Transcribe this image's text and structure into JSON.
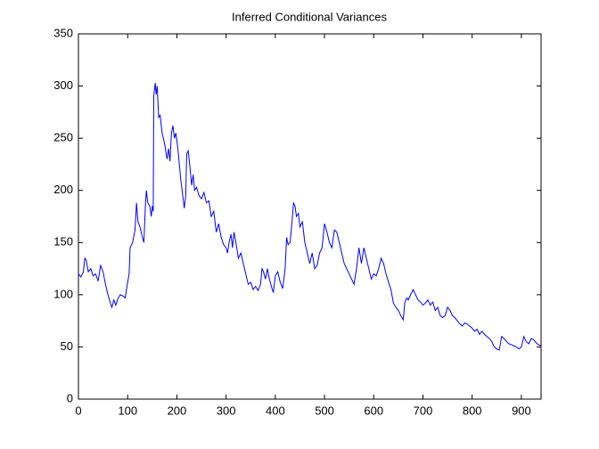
{
  "chart_data": {
    "type": "line",
    "title": "Inferred Conditional Variances",
    "x": [
      0,
      5,
      10,
      13,
      16,
      20,
      25,
      30,
      35,
      40,
      45,
      50,
      55,
      60,
      65,
      68,
      72,
      76,
      80,
      85,
      90,
      95,
      100,
      103,
      105,
      110,
      115,
      118,
      121,
      125,
      130,
      133,
      136,
      138,
      141,
      145,
      148,
      150,
      152,
      153,
      156,
      158,
      160,
      163,
      166,
      170,
      175,
      180,
      183,
      186,
      189,
      192,
      195,
      198,
      202,
      205,
      208,
      212,
      215,
      218,
      220,
      223,
      226,
      230,
      233,
      236,
      240,
      245,
      250,
      255,
      260,
      265,
      270,
      275,
      280,
      285,
      290,
      295,
      300,
      303,
      306,
      310,
      313,
      316,
      320,
      325,
      330,
      335,
      340,
      345,
      350,
      355,
      360,
      365,
      370,
      373,
      376,
      380,
      384,
      388,
      392,
      396,
      400,
      405,
      410,
      415,
      420,
      423,
      426,
      430,
      434,
      437,
      440,
      443,
      447,
      450,
      455,
      460,
      465,
      470,
      475,
      480,
      485,
      490,
      495,
      500,
      505,
      510,
      515,
      520,
      525,
      530,
      535,
      540,
      545,
      550,
      555,
      560,
      565,
      570,
      575,
      580,
      585,
      590,
      595,
      600,
      605,
      610,
      615,
      620,
      625,
      630,
      635,
      640,
      645,
      650,
      655,
      660,
      663,
      667,
      670,
      675,
      680,
      685,
      690,
      695,
      700,
      705,
      710,
      715,
      720,
      725,
      730,
      735,
      740,
      745,
      750,
      755,
      760,
      765,
      770,
      775,
      780,
      785,
      790,
      795,
      800,
      805,
      810,
      815,
      820,
      825,
      830,
      835,
      840,
      845,
      850,
      855,
      860,
      865,
      870,
      875,
      880,
      885,
      890,
      895,
      900,
      905,
      910,
      915,
      920,
      925,
      930,
      935,
      940
    ],
    "series": [
      {
        "color": "#0000ff",
        "values": [
          120,
          117,
          122,
          135,
          133,
          122,
          125,
          118,
          120,
          113,
          128,
          122,
          110,
          100,
          92,
          88,
          95,
          90,
          96,
          100,
          99,
          97,
          112,
          120,
          145,
          150,
          162,
          188,
          170,
          165,
          155,
          150,
          185,
          200,
          188,
          185,
          175,
          185,
          180,
          290,
          303,
          292,
          300,
          270,
          272,
          255,
          245,
          230,
          240,
          228,
          255,
          262,
          250,
          255,
          240,
          225,
          210,
          195,
          183,
          195,
          235,
          238,
          225,
          205,
          215,
          200,
          203,
          195,
          192,
          198,
          188,
          190,
          175,
          180,
          160,
          168,
          155,
          148,
          145,
          140,
          150,
          158,
          145,
          160,
          150,
          135,
          140,
          130,
          120,
          110,
          112,
          105,
          108,
          104,
          110,
          125,
          122,
          115,
          125,
          115,
          108,
          102,
          118,
          122,
          112,
          106,
          125,
          155,
          148,
          150,
          170,
          188,
          185,
          175,
          178,
          165,
          170,
          150,
          140,
          130,
          140,
          125,
          128,
          140,
          145,
          168,
          160,
          150,
          145,
          162,
          160,
          150,
          140,
          130,
          125,
          120,
          115,
          110,
          125,
          145,
          130,
          145,
          135,
          125,
          115,
          120,
          118,
          125,
          135,
          130,
          120,
          112,
          105,
          92,
          88,
          85,
          80,
          76,
          92,
          97,
          95,
          100,
          105,
          100,
          95,
          93,
          90,
          92,
          95,
          90,
          93,
          85,
          88,
          80,
          78,
          80,
          88,
          85,
          80,
          78,
          75,
          72,
          70,
          73,
          72,
          70,
          68,
          65,
          67,
          62,
          65,
          62,
          60,
          58,
          55,
          50,
          48,
          47,
          60,
          58,
          55,
          53,
          52,
          51,
          50,
          48,
          50,
          60,
          55,
          53,
          58,
          57,
          54,
          52,
          51
        ]
      }
    ],
    "xlim": [
      0,
      940
    ],
    "ylim": [
      0,
      350
    ],
    "xticks": [
      0,
      100,
      200,
      300,
      400,
      500,
      600,
      700,
      800,
      900
    ],
    "yticks": [
      0,
      50,
      100,
      150,
      200,
      250,
      300,
      350
    ]
  }
}
